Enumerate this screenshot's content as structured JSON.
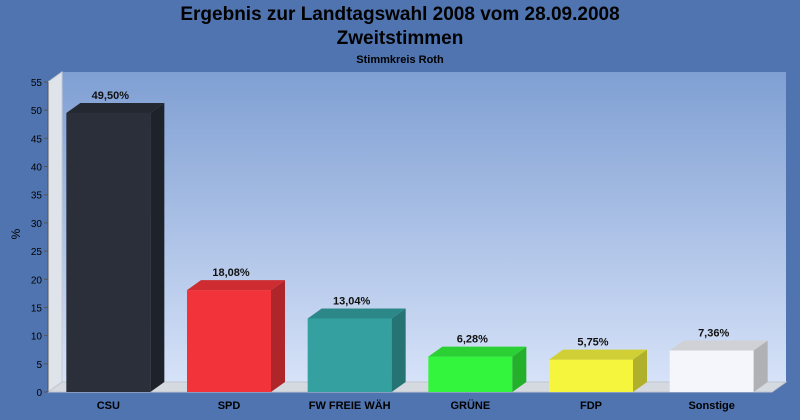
{
  "header": {
    "title": "Ergebnis zur Landtagswahl 2008 vom 28.09.2008",
    "subtitle": "Zweitstimmen",
    "caption": "Stimmkreis Roth"
  },
  "chart_data": {
    "type": "bar",
    "title": "Ergebnis zur Landtagswahl 2008 vom 28.09.2008",
    "subtitle": "Zweitstimmen",
    "caption": "Stimmkreis Roth",
    "ylabel": "%",
    "xlabel": "",
    "ylim": [
      0,
      55
    ],
    "yticks": [
      0,
      5,
      10,
      15,
      20,
      25,
      30,
      35,
      40,
      45,
      50,
      55
    ],
    "grid": false,
    "legend": "none",
    "categories": [
      "CSU",
      "SPD",
      "FW FREIE WÄH",
      "GRÜNE",
      "FDP",
      "Sonstige"
    ],
    "values": [
      49.5,
      18.08,
      13.04,
      6.28,
      5.75,
      7.36
    ],
    "value_labels": [
      "49,50%",
      "18,08%",
      "13,04%",
      "6,28%",
      "5,75%",
      "7,36%"
    ],
    "colors": [
      "#2a2f3a",
      "#f2343a",
      "#34a0a0",
      "#33f53d",
      "#f5f53d",
      "#f4f6fb"
    ]
  }
}
